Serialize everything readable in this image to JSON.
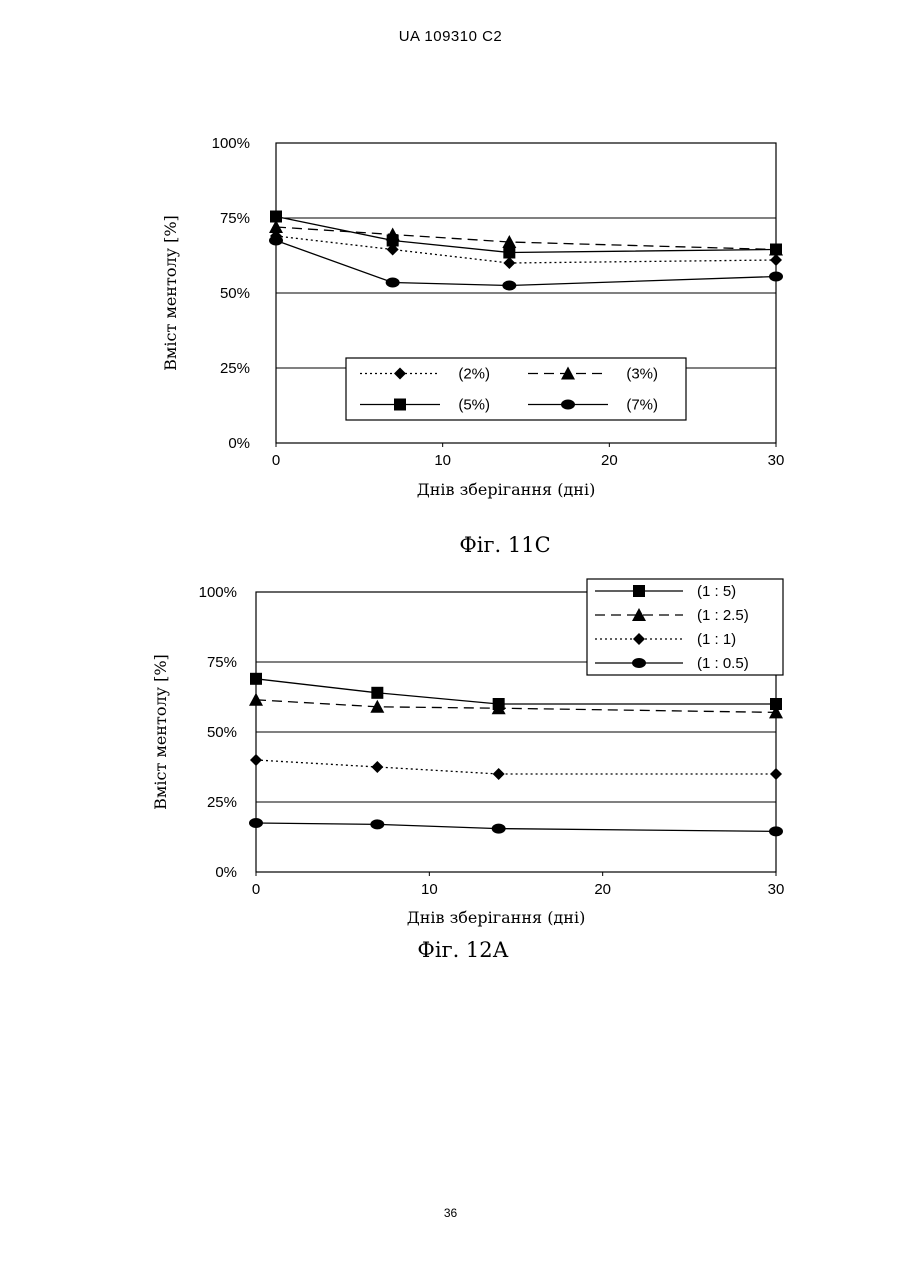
{
  "page": {
    "header": "UA   109310   C2",
    "page_number": "36"
  },
  "chart_data": [
    {
      "type": "line",
      "caption": "Фіг. 11С",
      "xlabel": "Днів зберігання (дні)",
      "ylabel": "Вміст ментолу [%]",
      "xlim": [
        0,
        30
      ],
      "ylim": [
        0,
        100
      ],
      "xticks": [
        0,
        10,
        20,
        30
      ],
      "yticks": [
        0,
        25,
        50,
        75,
        100
      ],
      "ytick_labels": [
        "0%",
        "25%",
        "50%",
        "75%",
        "100%"
      ],
      "grid_y": [
        25,
        50,
        75
      ],
      "legend": "bottom-center, 2 columns",
      "x": [
        0,
        7,
        14,
        30
      ],
      "series": [
        {
          "name": "(2%)",
          "marker": "diamond",
          "line": "dotted",
          "values": [
            69,
            64.5,
            60,
            61
          ]
        },
        {
          "name": "(3%)",
          "marker": "triangle",
          "line": "dashed",
          "values": [
            72,
            69.5,
            67,
            64.5
          ]
        },
        {
          "name": "(5%)",
          "marker": "square",
          "line": "solid",
          "values": [
            75.5,
            67.5,
            63.5,
            64.5
          ]
        },
        {
          "name": "(7%)",
          "marker": "circle",
          "line": "solid",
          "values": [
            67.5,
            53.5,
            52.5,
            55.5
          ]
        }
      ]
    },
    {
      "type": "line",
      "caption": "Фіг. 12А",
      "xlabel": "Днів зберігання (дні)",
      "ylabel": "Вміст ментолу [%]",
      "xlim": [
        0,
        30
      ],
      "ylim": [
        0,
        100
      ],
      "xticks": [
        0,
        10,
        20,
        30
      ],
      "yticks": [
        0,
        25,
        50,
        75,
        100
      ],
      "ytick_labels": [
        "0%",
        "25%",
        "50%",
        "75%",
        "100%"
      ],
      "grid_y": [
        25,
        50,
        75
      ],
      "legend": "top-right, 1 column",
      "x": [
        0,
        7,
        14,
        30
      ],
      "series": [
        {
          "name": "(1 : 5)",
          "marker": "square",
          "line": "solid",
          "values": [
            69,
            64,
            60,
            60
          ]
        },
        {
          "name": "(1 : 2.5)",
          "marker": "triangle",
          "line": "dashed",
          "values": [
            61.5,
            59,
            58.5,
            57
          ]
        },
        {
          "name": "(1 : 1)",
          "marker": "diamond",
          "line": "dotted",
          "values": [
            40,
            37.5,
            35,
            35
          ]
        },
        {
          "name": "(1 : 0.5)",
          "marker": "circle",
          "line": "solid",
          "values": [
            17.5,
            17,
            15.5,
            14.5
          ]
        }
      ]
    }
  ]
}
